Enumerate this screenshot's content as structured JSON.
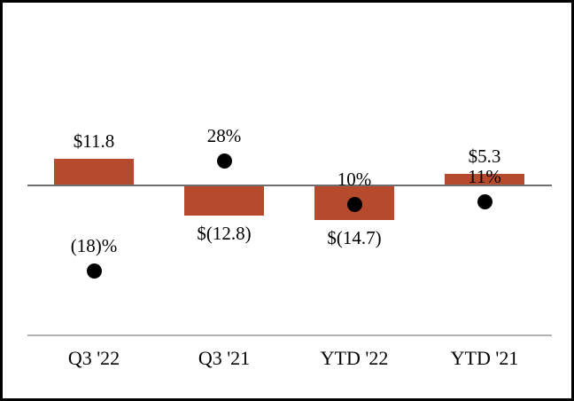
{
  "chart_data": {
    "type": "bar",
    "subtype": "bar-and-dot-combo",
    "title": "",
    "xlabel": "",
    "ylabel": "",
    "gridlines": false,
    "legend": "none",
    "categories": [
      "Q3 '22",
      "Q3 '21",
      "YTD '22",
      "YTD '21"
    ],
    "series": [
      {
        "name": "dollar-amount-bars",
        "type": "bar",
        "values": [
          11.8,
          -12.8,
          -14.7,
          5.3
        ],
        "labels": [
          "$11.8",
          "$(12.8)",
          "$(14.7)",
          "$5.3"
        ],
        "color": "#b54a2d"
      },
      {
        "name": "percent-dots",
        "type": "scatter",
        "values": [
          -18,
          28,
          10,
          11
        ],
        "labels": [
          "(18)%",
          "28%",
          "10%",
          "11%"
        ],
        "color": "#000000"
      }
    ],
    "axis_colors": {
      "zero_line": "#6e6e6e",
      "bottom_line": "#b3b3b3"
    },
    "frame_border_color": "#000000",
    "background_color": "#ffffff"
  }
}
